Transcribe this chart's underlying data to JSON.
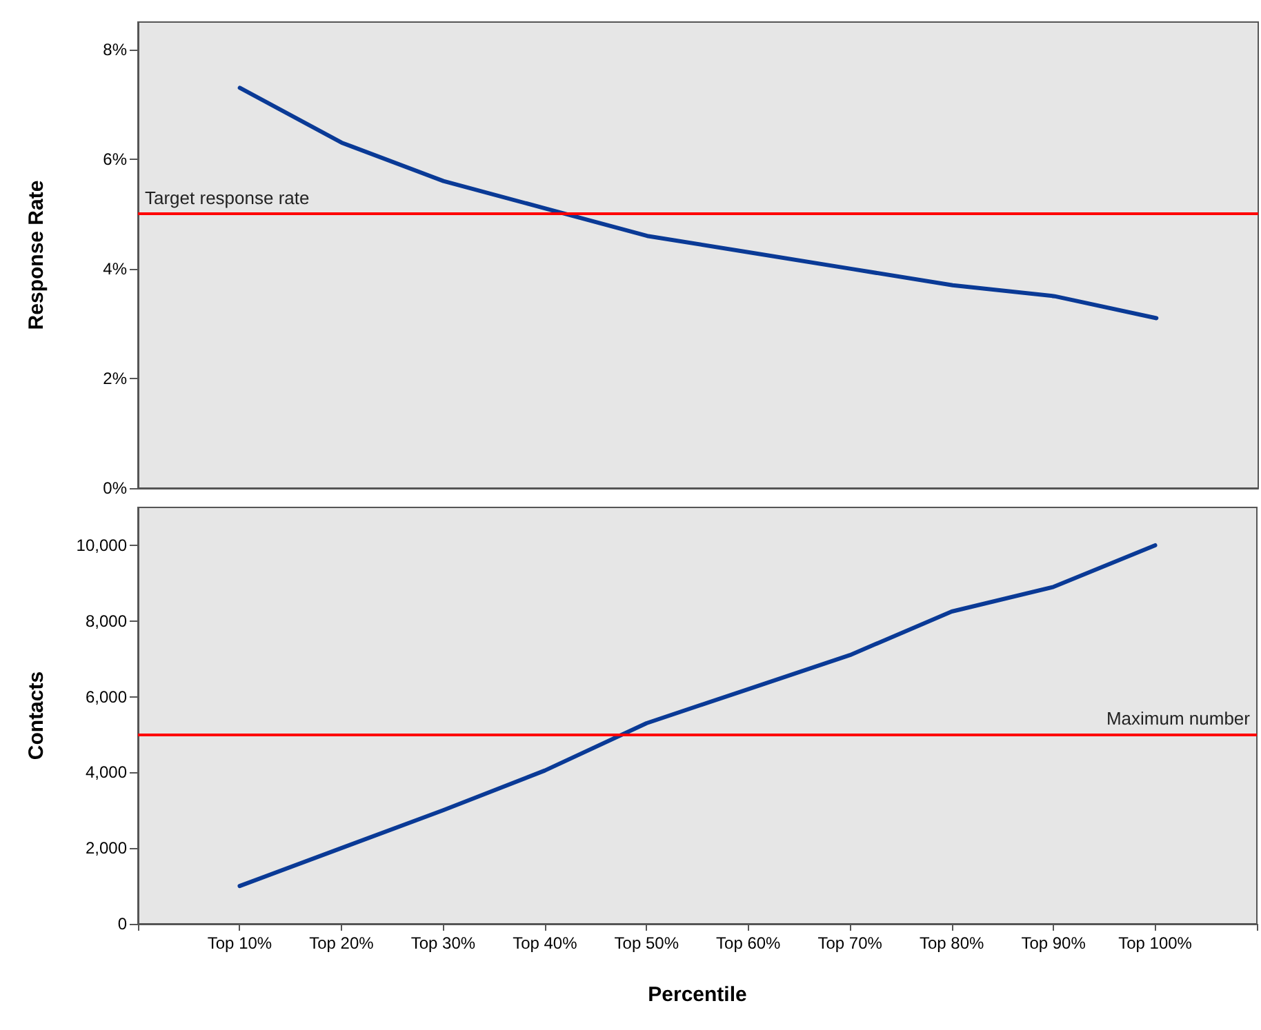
{
  "chart_data": [
    {
      "type": "line",
      "ylabel": "Response Rate",
      "categories": [
        "Top 10%",
        "Top 20%",
        "Top 30%",
        "Top 40%",
        "Top 50%",
        "Top 60%",
        "Top 70%",
        "Top 80%",
        "Top 90%",
        "Top 100%"
      ],
      "series": [
        {
          "color": "#0a3a96",
          "values": [
            7.3,
            6.3,
            5.6,
            5.1,
            4.6,
            4.3,
            4.0,
            3.7,
            3.5,
            3.1
          ]
        }
      ],
      "ylim": [
        0,
        8.5
      ],
      "yticks": [
        {
          "value": 0,
          "label": "0%"
        },
        {
          "value": 2,
          "label": "2%"
        },
        {
          "value": 4,
          "label": "4%"
        },
        {
          "value": 6,
          "label": "6%"
        },
        {
          "value": 8,
          "label": "8%"
        }
      ],
      "ref_lines": [
        {
          "axis": "y",
          "value": 5,
          "label": "Target response rate",
          "color": "#ff0000"
        }
      ],
      "tick_labels": "y",
      "grid": false,
      "marker": "none",
      "line_style": "solid"
    },
    {
      "type": "line",
      "ylabel": "Contacts",
      "xlabel": "Percentile",
      "categories": [
        "Top 10%",
        "Top 20%",
        "Top 30%",
        "Top 40%",
        "Top 50%",
        "Top 60%",
        "Top 70%",
        "Top 80%",
        "Top 90%",
        "Top 100%"
      ],
      "series": [
        {
          "color": "#0a3a96",
          "values": [
            1000,
            2000,
            3000,
            4050,
            5300,
            6200,
            7100,
            8250,
            8900,
            10000
          ]
        }
      ],
      "ylim": [
        0,
        11000
      ],
      "yticks": [
        {
          "value": 0,
          "label": "0"
        },
        {
          "value": 2000,
          "label": "2,000"
        },
        {
          "value": 4000,
          "label": "4,000"
        },
        {
          "value": 6000,
          "label": "6,000"
        },
        {
          "value": 8000,
          "label": "8,000"
        },
        {
          "value": 10000,
          "label": "10,000"
        }
      ],
      "ref_lines": [
        {
          "axis": "y",
          "value": 5000,
          "label": "Maximum number",
          "color": "#ff0000"
        }
      ],
      "grid": false,
      "marker": "none",
      "line_style": "solid"
    }
  ]
}
